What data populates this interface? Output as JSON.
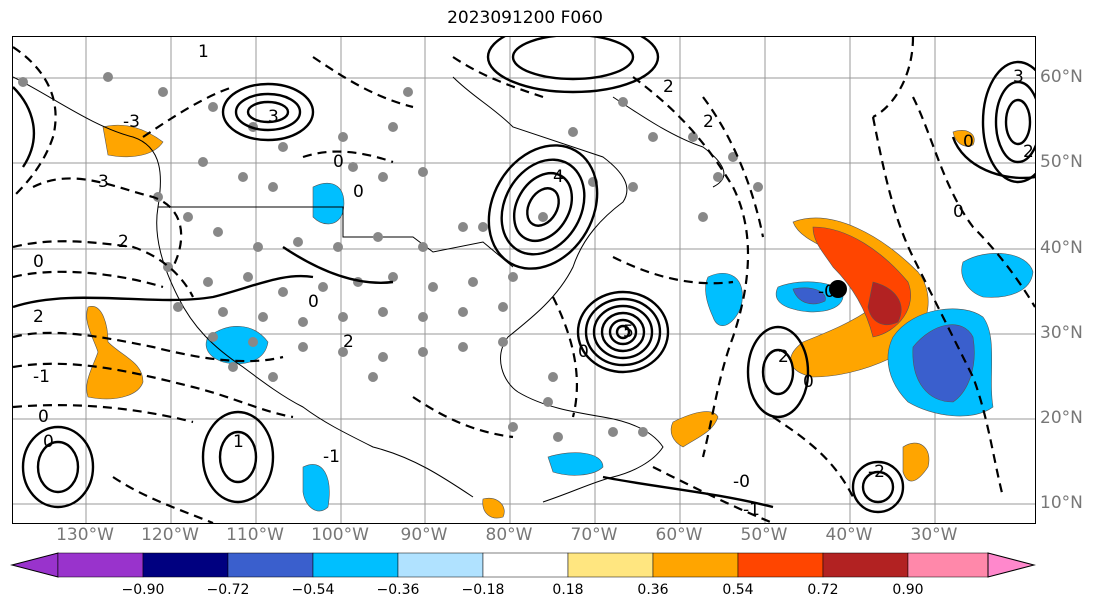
{
  "title": "2023091200 F060",
  "lon_labels": [
    "130°W",
    "120°W",
    "110°W",
    "100°W",
    "90°W",
    "80°W",
    "70°W",
    "60°W",
    "50°W",
    "40°W",
    "30°W"
  ],
  "lat_labels": [
    "60°N",
    "50°N",
    "40°N",
    "30°N",
    "20°N",
    "10°N"
  ],
  "colorbar": {
    "ticks": [
      "−0.90",
      "−0.72",
      "−0.54",
      "−0.36",
      "−0.18",
      "0.18",
      "0.36",
      "0.54",
      "0.72",
      "0.90"
    ],
    "colors": [
      "#9933cc",
      "#000080",
      "#3a5fcd",
      "#00bfff",
      "#b0e2ff",
      "#ffffff",
      "#ffe680",
      "#ffa500",
      "#ff4500",
      "#b22222",
      "#ff88aa",
      "#ff88cc"
    ]
  },
  "contour_labels": [
    "1",
    "2",
    "3",
    "-1",
    "-2",
    "-3",
    "0",
    "4",
    "5",
    "-0",
    "-1"
  ],
  "storm_marker": "black-dot"
}
